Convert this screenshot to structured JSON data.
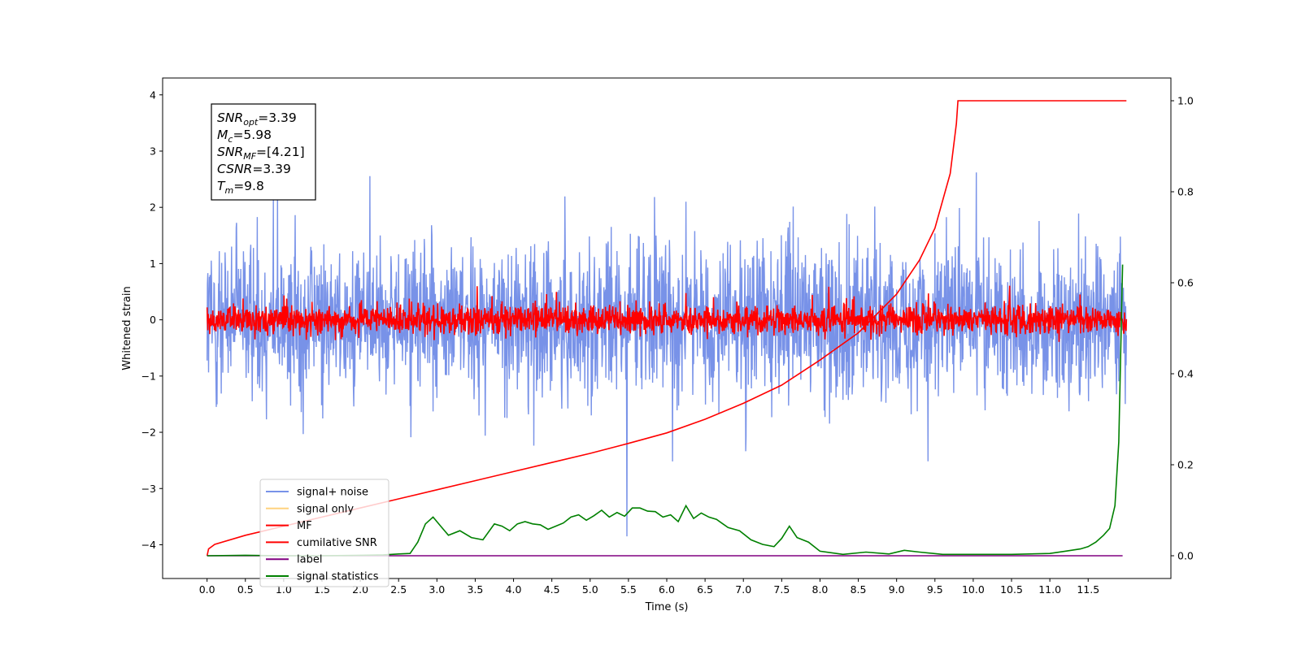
{
  "chart_data": {
    "type": "line",
    "title": "",
    "xlabel": "Time (s)",
    "ylabel": "Whitened strain",
    "xlim": [
      -0.58,
      12.58
    ],
    "ylim": [
      -4.6,
      4.3
    ],
    "y2lim": [
      -0.05,
      1.05
    ],
    "xticks": [
      "0.0",
      "0.5",
      "1.0",
      "1.5",
      "2.0",
      "2.5",
      "3.0",
      "3.5",
      "4.0",
      "4.5",
      "5.0",
      "5.5",
      "6.0",
      "6.5",
      "7.0",
      "7.5",
      "8.0",
      "8.5",
      "9.0",
      "9.5",
      "10.0",
      "10.5",
      "11.0",
      "11.5"
    ],
    "yticks": [
      "4",
      "3",
      "2",
      "1",
      "0",
      "−1",
      "−2",
      "−3",
      "−4"
    ],
    "y2ticks": [
      "1.0",
      "0.8",
      "0.6",
      "0.4",
      "0.2",
      "0.0"
    ],
    "grid": false,
    "legend_position": "lower-left",
    "annotation": {
      "lines": [
        {
          "sym": "SNR",
          "sub": "opt",
          "val": "=3.39"
        },
        {
          "sym": "M",
          "sub": "c",
          "val": "=5.98"
        },
        {
          "sym": "SNR",
          "sub": "MF",
          "val": "=[4.21]"
        },
        {
          "sym": "CSNR",
          "sub": "",
          "val": "=3.39"
        },
        {
          "sym": "T",
          "sub": "m",
          "val": "=9.8"
        }
      ]
    },
    "series": [
      {
        "name": "signal+ noise",
        "color": "#7892e8",
        "axis": "left",
        "description": "whitened noise, roughly between -2.5 and 2.5 with spikes to about +-3.9"
      },
      {
        "name": "signal only",
        "color": "#ffd27f",
        "axis": "left",
        "description": "not visible"
      },
      {
        "name": "MF",
        "color": "#ff0000",
        "axis": "left",
        "description": "matched filter output, roughly between -0.4 and 0.7 with spikes to 1.0"
      },
      {
        "name": "cumilative SNR",
        "color": "#ff0000",
        "axis": "right",
        "x": [
          0.0,
          0.02,
          0.1,
          0.5,
          1.0,
          1.5,
          2.0,
          2.5,
          3.0,
          3.5,
          4.0,
          4.5,
          5.0,
          5.5,
          6.0,
          6.5,
          7.0,
          7.5,
          8.0,
          8.5,
          9.0,
          9.3,
          9.5,
          9.7,
          9.78,
          9.8,
          10.0,
          11.0,
          12.0
        ],
        "values": [
          0.0,
          0.015,
          0.025,
          0.045,
          0.065,
          0.085,
          0.105,
          0.125,
          0.145,
          0.165,
          0.185,
          0.205,
          0.225,
          0.247,
          0.27,
          0.3,
          0.335,
          0.375,
          0.43,
          0.49,
          0.575,
          0.65,
          0.72,
          0.84,
          0.95,
          1.0,
          1.0,
          1.0,
          1.0
        ]
      },
      {
        "name": "label",
        "color": "#800080",
        "axis": "right",
        "x": [
          0.0,
          11.95
        ],
        "values": [
          0.0,
          0.0
        ]
      },
      {
        "name": "signal statistics",
        "color": "#008000",
        "axis": "right",
        "x": [
          0.0,
          0.5,
          1.0,
          1.5,
          2.0,
          2.3,
          2.5,
          2.65,
          2.75,
          2.85,
          2.95,
          3.05,
          3.15,
          3.3,
          3.45,
          3.6,
          3.75,
          3.85,
          3.95,
          4.05,
          4.15,
          4.25,
          4.35,
          4.45,
          4.55,
          4.65,
          4.75,
          4.85,
          4.95,
          5.05,
          5.15,
          5.25,
          5.35,
          5.45,
          5.55,
          5.65,
          5.75,
          5.85,
          5.95,
          6.05,
          6.15,
          6.25,
          6.35,
          6.45,
          6.55,
          6.65,
          6.8,
          6.95,
          7.1,
          7.25,
          7.4,
          7.5,
          7.6,
          7.7,
          7.85,
          8.0,
          8.3,
          8.6,
          8.9,
          9.1,
          9.3,
          9.6,
          10.0,
          10.5,
          11.0,
          11.2,
          11.4,
          11.5,
          11.6,
          11.7,
          11.78,
          11.85,
          11.9,
          11.95
        ],
        "values": [
          0.0,
          0.001,
          0.0,
          0.0,
          0.001,
          0.002,
          0.004,
          0.005,
          0.03,
          0.07,
          0.085,
          0.065,
          0.045,
          0.055,
          0.04,
          0.035,
          0.07,
          0.065,
          0.055,
          0.07,
          0.075,
          0.07,
          0.068,
          0.058,
          0.065,
          0.072,
          0.085,
          0.09,
          0.078,
          0.088,
          0.1,
          0.085,
          0.095,
          0.087,
          0.105,
          0.105,
          0.098,
          0.097,
          0.085,
          0.09,
          0.075,
          0.11,
          0.082,
          0.094,
          0.085,
          0.08,
          0.062,
          0.055,
          0.035,
          0.025,
          0.02,
          0.038,
          0.065,
          0.04,
          0.03,
          0.01,
          0.003,
          0.008,
          0.004,
          0.012,
          0.008,
          0.003,
          0.003,
          0.003,
          0.005,
          0.01,
          0.015,
          0.02,
          0.03,
          0.045,
          0.06,
          0.11,
          0.25,
          0.64
        ]
      }
    ]
  }
}
